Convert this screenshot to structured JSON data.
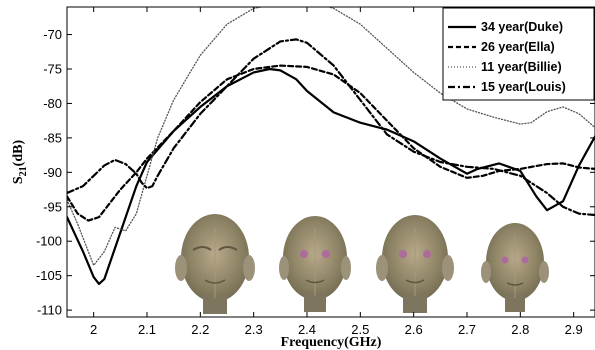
{
  "chart_data": {
    "type": "line",
    "xlabel": "Frequency(GHz)",
    "ylabel_main": "S",
    "ylabel_sub": "21",
    "ylabel_unit": "(dB)",
    "xlim": [
      1.95,
      2.94
    ],
    "ylim": [
      -111,
      -66
    ],
    "xticks": [
      2,
      2.1,
      2.2,
      2.3,
      2.4,
      2.5,
      2.6,
      2.7,
      2.8,
      2.9
    ],
    "xtick_labels": [
      "2",
      "2.1",
      "2.2",
      "2.3",
      "2.4",
      "2.5",
      "2.6",
      "2.7",
      "2.8",
      "2.9"
    ],
    "yticks": [
      -110,
      -105,
      -100,
      -95,
      -90,
      -85,
      -80,
      -75,
      -70
    ],
    "ytick_labels": [
      "-110",
      "-105",
      "-100",
      "-95",
      "-90",
      "-85",
      "-80",
      "-75",
      "-70"
    ],
    "legend_position": "top-right",
    "grid": false,
    "series": [
      {
        "name": "34 year(Duke)",
        "style": "solid",
        "color": "#000000",
        "x": [
          1.95,
          1.98,
          2.0,
          2.01,
          2.02,
          2.04,
          2.06,
          2.08,
          2.1,
          2.15,
          2.2,
          2.25,
          2.3,
          2.33,
          2.35,
          2.38,
          2.4,
          2.45,
          2.5,
          2.55,
          2.6,
          2.65,
          2.7,
          2.72,
          2.76,
          2.8,
          2.83,
          2.85,
          2.88,
          2.91,
          2.94
        ],
        "y": [
          -96.5,
          -101.5,
          -105.2,
          -106.2,
          -105.5,
          -101.0,
          -96.5,
          -92.0,
          -88.5,
          -84.0,
          -80.5,
          -77.5,
          -75.5,
          -75.0,
          -75.2,
          -76.5,
          -78.2,
          -81.3,
          -82.8,
          -83.8,
          -85.5,
          -88.0,
          -90.2,
          -89.5,
          -88.7,
          -89.8,
          -93.5,
          -95.5,
          -94.2,
          -89.0,
          -84.8
        ]
      },
      {
        "name": "26 year(Ella)",
        "style": "dashed",
        "color": "#000000",
        "x": [
          1.95,
          1.97,
          1.99,
          2.01,
          2.03,
          2.05,
          2.08,
          2.1,
          2.15,
          2.2,
          2.25,
          2.3,
          2.35,
          2.4,
          2.45,
          2.5,
          2.55,
          2.6,
          2.65,
          2.7,
          2.73,
          2.76,
          2.8,
          2.85,
          2.88,
          2.91,
          2.94
        ],
        "y": [
          -93.5,
          -96.0,
          -97.0,
          -96.5,
          -94.5,
          -92.5,
          -90.0,
          -88.0,
          -84.0,
          -79.8,
          -76.5,
          -75.0,
          -74.5,
          -74.7,
          -75.8,
          -78.5,
          -82.5,
          -86.5,
          -89.2,
          -90.8,
          -90.5,
          -89.8,
          -89.5,
          -88.8,
          -88.7,
          -89.3,
          -89.5
        ]
      },
      {
        "name": "11 year(Billie)",
        "style": "dotted",
        "color": "#555555",
        "x": [
          1.95,
          1.97,
          1.99,
          2.0,
          2.02,
          2.04,
          2.06,
          2.08,
          2.1,
          2.12,
          2.15,
          2.2,
          2.25,
          2.3,
          2.35,
          2.4,
          2.42,
          2.45,
          2.5,
          2.55,
          2.6,
          2.65,
          2.7,
          2.75,
          2.8,
          2.82,
          2.85,
          2.88,
          2.91,
          2.94
        ],
        "y": [
          -94.0,
          -97.5,
          -101.5,
          -103.5,
          -101.5,
          -98.0,
          -98.5,
          -96.0,
          -90.5,
          -85.0,
          -79.5,
          -73.0,
          -68.5,
          -66.2,
          -65.5,
          -65.2,
          -65.5,
          -66.2,
          -68.5,
          -72.0,
          -75.5,
          -78.5,
          -80.8,
          -82.0,
          -83.0,
          -82.8,
          -81.2,
          -80.5,
          -81.5,
          -83.5
        ]
      },
      {
        "name": "15 year(Louis)",
        "style": "dashdot",
        "color": "#000000",
        "x": [
          1.95,
          1.98,
          2.0,
          2.02,
          2.04,
          2.06,
          2.08,
          2.09,
          2.1,
          2.11,
          2.12,
          2.15,
          2.2,
          2.25,
          2.3,
          2.35,
          2.38,
          2.4,
          2.45,
          2.5,
          2.55,
          2.6,
          2.65,
          2.7,
          2.75,
          2.8,
          2.85,
          2.88,
          2.91,
          2.94
        ],
        "y": [
          -93.0,
          -92.0,
          -90.5,
          -89.0,
          -88.2,
          -88.8,
          -90.2,
          -91.5,
          -92.3,
          -92.0,
          -90.5,
          -86.5,
          -81.5,
          -77.5,
          -73.5,
          -71.0,
          -70.7,
          -71.2,
          -74.5,
          -79.5,
          -84.5,
          -87.0,
          -88.5,
          -89.2,
          -89.5,
          -90.5,
          -93.0,
          -95.0,
          -96.0,
          -96.2
        ]
      }
    ]
  }
}
